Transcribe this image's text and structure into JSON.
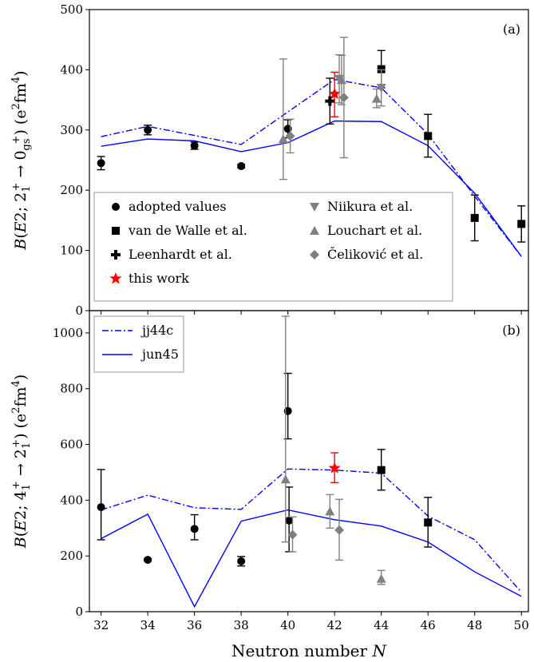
{
  "chart_data": [
    {
      "panel_label": "(a)",
      "type": "scatter",
      "ylabel": "B(E2; 2₁⁺ → 0gs⁺) (e²fm⁴)",
      "ylabel_parts": [
        "B",
        "(",
        "E",
        "2; 2",
        "1",
        "+",
        " → 0",
        "gs",
        "+",
        ") (e",
        "2",
        "fm",
        "4",
        ")"
      ],
      "ylim": [
        0,
        500
      ],
      "yticks": [
        0,
        100,
        200,
        300,
        400,
        500
      ],
      "xlim": [
        31.5,
        50.3
      ],
      "series": [
        {
          "name": "adopted values",
          "marker": "circle",
          "color": "#000000",
          "points": [
            {
              "x": 32,
              "y": 245,
              "lo": 234,
              "hi": 256
            },
            {
              "x": 34,
              "y": 300,
              "lo": 292,
              "hi": 308
            },
            {
              "x": 36,
              "y": 274,
              "lo": 268,
              "hi": 280
            },
            {
              "x": 38,
              "y": 240,
              "lo": 237,
              "hi": 243
            },
            {
              "x": 40,
              "y": 302,
              "lo": 287,
              "hi": 317
            }
          ]
        },
        {
          "name": "van de Walle et al.",
          "marker": "square",
          "color": "#000000",
          "points": [
            {
              "x": 44,
              "y": 401,
              "lo": 370,
              "hi": 432
            },
            {
              "x": 46,
              "y": 290,
              "lo": 255,
              "hi": 326
            },
            {
              "x": 48,
              "y": 154,
              "lo": 116,
              "hi": 192
            },
            {
              "x": 50,
              "y": 144,
              "lo": 114,
              "hi": 174
            }
          ]
        },
        {
          "name": "Leenhardt et al.",
          "marker": "plus",
          "color": "#000000",
          "points": [
            {
              "x": 41.8,
              "y": 348,
              "lo": 310,
              "hi": 386
            }
          ]
        },
        {
          "name": "this work",
          "marker": "star",
          "color": "#ff0000",
          "points": [
            {
              "x": 42,
              "y": 360,
              "lo": 322,
              "hi": 396
            }
          ]
        },
        {
          "name": "Niikura et al.",
          "marker": "triangle-down",
          "color": "#808080",
          "points": [
            {
              "x": 42.2,
              "y": 385,
              "lo": 345,
              "hi": 425
            },
            {
              "x": 44,
              "y": 370,
              "lo": 340,
              "hi": 400
            }
          ]
        },
        {
          "name": "Louchart et al.",
          "marker": "triangle-up",
          "color": "#808080",
          "points": [
            {
              "x": 39.8,
              "y": 285,
              "lo": 218,
              "hi": 418
            },
            {
              "x": 42.3,
              "y": 383,
              "lo": 342,
              "hi": 424
            },
            {
              "x": 43.8,
              "y": 352,
              "lo": 337,
              "hi": 368
            }
          ]
        },
        {
          "name": "Čeliković et al.",
          "marker": "diamond",
          "color": "#808080",
          "points": [
            {
              "x": 40.1,
              "y": 290,
              "lo": 262,
              "hi": 318
            },
            {
              "x": 42.4,
              "y": 354,
              "lo": 254,
              "hi": 454
            }
          ]
        },
        {
          "name": "jj44c",
          "style": "dashdot",
          "color": "#0000ff",
          "points": [
            {
              "x": 32,
              "y": 289
            },
            {
              "x": 34,
              "y": 306
            },
            {
              "x": 36,
              "y": 291
            },
            {
              "x": 38,
              "y": 276
            },
            {
              "x": 40,
              "y": 330
            },
            {
              "x": 42,
              "y": 384
            },
            {
              "x": 44,
              "y": 370
            },
            {
              "x": 46,
              "y": 293
            },
            {
              "x": 48,
              "y": 190
            },
            {
              "x": 50,
              "y": 90
            }
          ]
        },
        {
          "name": "jun45",
          "style": "solid",
          "color": "#0000ff",
          "points": [
            {
              "x": 32,
              "y": 273
            },
            {
              "x": 34,
              "y": 285
            },
            {
              "x": 36,
              "y": 282
            },
            {
              "x": 38,
              "y": 264
            },
            {
              "x": 40,
              "y": 279
            },
            {
              "x": 42,
              "y": 315
            },
            {
              "x": 44,
              "y": 314
            },
            {
              "x": 46,
              "y": 274
            },
            {
              "x": 48,
              "y": 195
            },
            {
              "x": 50,
              "y": 90
            }
          ]
        }
      ],
      "legend_order": [
        "adopted values",
        "van de Walle et al.",
        "Leenhardt et al.",
        "this work",
        "Niikura et al.",
        "Louchart et al.",
        "Čeliković et al."
      ],
      "legend_location": "lower-left"
    },
    {
      "panel_label": "(b)",
      "type": "scatter",
      "ylabel": "B(E2; 4₁⁺ → 2₁⁺) (e²fm⁴)",
      "ylabel_parts": [
        "B",
        "(",
        "E",
        "2; 4",
        "1",
        "+",
        " → 2",
        "1",
        "+",
        ") (e",
        "2",
        "fm",
        "4",
        ")"
      ],
      "xlabel": "Neutron number N",
      "xticks": [
        32,
        34,
        36,
        38,
        40,
        42,
        44,
        46,
        48,
        50
      ],
      "ylim": [
        0,
        1080
      ],
      "yticks": [
        0,
        200,
        400,
        600,
        800,
        1000
      ],
      "xlim": [
        31.5,
        50.3
      ],
      "series": [
        {
          "name": "adopted values",
          "marker": "circle",
          "color": "#000000",
          "points": [
            {
              "x": 32,
              "y": 375,
              "lo": 258,
              "hi": 510
            },
            {
              "x": 34,
              "y": 186,
              "lo": 182,
              "hi": 190
            },
            {
              "x": 36,
              "y": 297,
              "lo": 258,
              "hi": 348
            },
            {
              "x": 38,
              "y": 181,
              "lo": 164,
              "hi": 198
            },
            {
              "x": 40,
              "y": 720,
              "lo": 620,
              "hi": 855
            },
            {
              "x": 40.05,
              "y": 327,
              "lo": 215,
              "hi": 447
            }
          ]
        },
        {
          "name": "van de Walle et al.",
          "marker": "square",
          "color": "#000000",
          "points": [
            {
              "x": 44,
              "y": 508,
              "lo": 436,
              "hi": 582
            },
            {
              "x": 46,
              "y": 320,
              "lo": 232,
              "hi": 410
            }
          ]
        },
        {
          "name": "this work",
          "marker": "star",
          "color": "#ff0000",
          "points": [
            {
              "x": 42,
              "y": 515,
              "lo": 463,
              "hi": 570
            }
          ]
        },
        {
          "name": "Louchart et al.",
          "marker": "triangle-up",
          "color": "#808080",
          "points": [
            {
              "x": 39.9,
              "y": 475,
              "lo": 250,
              "hi": 1060
            },
            {
              "x": 41.8,
              "y": 360,
              "lo": 300,
              "hi": 420
            },
            {
              "x": 44,
              "y": 118,
              "lo": 98,
              "hi": 148
            }
          ]
        },
        {
          "name": "Čeliković et al.",
          "marker": "diamond",
          "color": "#808080",
          "points": [
            {
              "x": 40.2,
              "y": 276,
              "lo": 215,
              "hi": 340
            },
            {
              "x": 42.2,
              "y": 293,
              "lo": 185,
              "hi": 403
            }
          ]
        },
        {
          "name": "jj44c",
          "style": "dashdot",
          "color": "#0000ff",
          "points": [
            {
              "x": 32,
              "y": 365
            },
            {
              "x": 34,
              "y": 418
            },
            {
              "x": 36,
              "y": 373
            },
            {
              "x": 38,
              "y": 367
            },
            {
              "x": 40,
              "y": 512
            },
            {
              "x": 42,
              "y": 508
            },
            {
              "x": 44,
              "y": 497
            },
            {
              "x": 46,
              "y": 343
            },
            {
              "x": 48,
              "y": 258
            },
            {
              "x": 50,
              "y": 70
            }
          ]
        },
        {
          "name": "jun45",
          "style": "solid",
          "color": "#0000ff",
          "points": [
            {
              "x": 32,
              "y": 262
            },
            {
              "x": 34,
              "y": 350
            },
            {
              "x": 36,
              "y": 18
            },
            {
              "x": 38,
              "y": 325
            },
            {
              "x": 40,
              "y": 365
            },
            {
              "x": 42,
              "y": 330
            },
            {
              "x": 44,
              "y": 307
            },
            {
              "x": 46,
              "y": 250
            },
            {
              "x": 48,
              "y": 143
            },
            {
              "x": 50,
              "y": 55
            }
          ]
        }
      ],
      "legend_order": [
        "jj44c",
        "jun45"
      ],
      "legend_location": "upper-left"
    }
  ]
}
